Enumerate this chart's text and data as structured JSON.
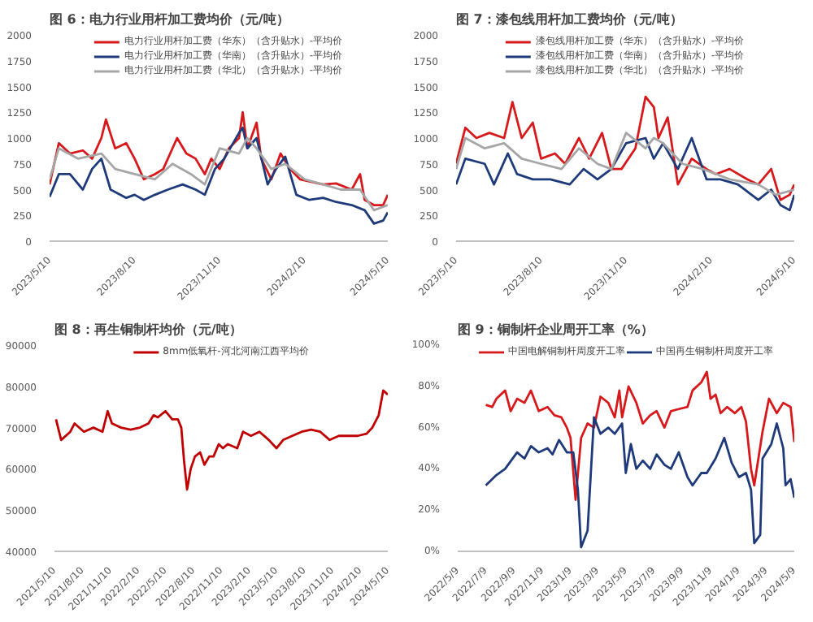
{
  "chart_data": [
    {
      "type": "line",
      "title": "图 6：电力行业用杆加工费均价（元/吨）",
      "legend": "top",
      "xlim": [
        "2023-05-10",
        "2024-05-10"
      ],
      "ylim": [
        0,
        2000
      ],
      "xticks": [
        {
          "value": "2023-05-10",
          "label": "2023/5/10"
        },
        {
          "value": "2023-08-10",
          "label": "2023/8/10"
        },
        {
          "value": "2023-11-10",
          "label": "2023/11/10"
        },
        {
          "value": "2024-02-10",
          "label": "2024/2/10"
        },
        {
          "value": "2024-05-10",
          "label": "2024/5/10"
        }
      ],
      "yticks": [
        0,
        250,
        500,
        750,
        1000,
        1250,
        1500,
        1750,
        2000
      ],
      "series": [
        {
          "name": "电力行业用杆加工费（华东）（含升贴水）-平均价",
          "color": "#d7191c",
          "x": [
            "2023-05-10",
            "2023-05-20",
            "2023-06-01",
            "2023-06-15",
            "2023-06-25",
            "2023-07-05",
            "2023-07-10",
            "2023-07-20",
            "2023-08-01",
            "2023-08-10",
            "2023-08-20",
            "2023-09-01",
            "2023-09-10",
            "2023-09-25",
            "2023-10-05",
            "2023-10-15",
            "2023-10-25",
            "2023-11-01",
            "2023-11-10",
            "2023-11-20",
            "2023-12-01",
            "2023-12-05",
            "2023-12-10",
            "2023-12-20",
            "2023-12-25",
            "2024-01-05",
            "2024-01-15",
            "2024-01-25",
            "2024-02-05",
            "2024-02-15",
            "2024-03-01",
            "2024-03-15",
            "2024-04-01",
            "2024-04-10",
            "2024-04-15",
            "2024-04-25",
            "2024-05-05",
            "2024-05-10"
          ],
          "values": [
            550,
            950,
            850,
            880,
            800,
            1000,
            1180,
            900,
            950,
            800,
            600,
            650,
            700,
            1000,
            850,
            800,
            650,
            800,
            700,
            900,
            1000,
            1250,
            900,
            1150,
            800,
            600,
            850,
            700,
            600,
            580,
            550,
            560,
            500,
            650,
            400,
            350,
            350,
            450
          ]
        },
        {
          "name": "电力行业用杆加工费（华南）（含升贴水）-平均价",
          "color": "#1f3a7a",
          "x": [
            "2023-05-10",
            "2023-05-20",
            "2023-06-01",
            "2023-06-15",
            "2023-06-25",
            "2023-07-05",
            "2023-07-15",
            "2023-08-01",
            "2023-08-10",
            "2023-08-20",
            "2023-09-01",
            "2023-09-15",
            "2023-10-01",
            "2023-10-15",
            "2023-10-25",
            "2023-11-05",
            "2023-11-15",
            "2023-12-01",
            "2023-12-05",
            "2023-12-10",
            "2023-12-20",
            "2024-01-01",
            "2024-01-10",
            "2024-01-20",
            "2024-02-01",
            "2024-02-15",
            "2024-03-01",
            "2024-03-15",
            "2024-04-01",
            "2024-04-15",
            "2024-04-25",
            "2024-05-05",
            "2024-05-10"
          ],
          "values": [
            430,
            650,
            650,
            500,
            700,
            800,
            500,
            420,
            450,
            400,
            450,
            500,
            550,
            500,
            450,
            700,
            800,
            1050,
            1100,
            900,
            1000,
            550,
            700,
            820,
            450,
            400,
            420,
            380,
            350,
            300,
            170,
            200,
            280
          ]
        },
        {
          "name": "电力行业用杆加工费（华北）（含升贴水）-平均价",
          "color": "#a6a6a6",
          "x": [
            "2023-05-10",
            "2023-05-20",
            "2023-06-10",
            "2023-07-05",
            "2023-07-20",
            "2023-08-10",
            "2023-09-01",
            "2023-09-20",
            "2023-10-10",
            "2023-10-25",
            "2023-11-10",
            "2023-12-01",
            "2023-12-10",
            "2023-12-20",
            "2024-01-05",
            "2024-01-20",
            "2024-02-10",
            "2024-03-01",
            "2024-03-20",
            "2024-04-10",
            "2024-04-25",
            "2024-05-10"
          ],
          "values": [
            600,
            900,
            800,
            850,
            700,
            650,
            600,
            750,
            650,
            550,
            900,
            850,
            1000,
            900,
            700,
            750,
            600,
            550,
            500,
            500,
            300,
            350
          ]
        }
      ]
    },
    {
      "type": "line",
      "title": "图 7：漆包线用杆加工费均价（元/吨）",
      "legend": "top",
      "xlim": [
        "2023-05-10",
        "2024-05-10"
      ],
      "ylim": [
        0,
        2000
      ],
      "xticks": [
        {
          "value": "2023-05-10",
          "label": "2023/5/10"
        },
        {
          "value": "2023-08-10",
          "label": "2023/8/10"
        },
        {
          "value": "2023-11-10",
          "label": "2023/11/10"
        },
        {
          "value": "2024-02-10",
          "label": "2024/2/10"
        },
        {
          "value": "2024-05-10",
          "label": "2024/5/10"
        }
      ],
      "yticks": [
        0,
        250,
        500,
        750,
        1000,
        1250,
        1500,
        1750,
        2000
      ],
      "series": [
        {
          "name": "漆包线用杆加工费（华东）（含升贴水）-平均价",
          "color": "#d7191c",
          "x": [
            "2023-05-10",
            "2023-05-20",
            "2023-06-01",
            "2023-06-15",
            "2023-07-01",
            "2023-07-10",
            "2023-07-20",
            "2023-08-01",
            "2023-08-10",
            "2023-08-25",
            "2023-09-05",
            "2023-09-20",
            "2023-10-01",
            "2023-10-15",
            "2023-10-25",
            "2023-11-05",
            "2023-11-20",
            "2023-12-01",
            "2023-12-10",
            "2023-12-15",
            "2023-12-25",
            "2024-01-05",
            "2024-01-20",
            "2024-02-05",
            "2024-02-15",
            "2024-03-01",
            "2024-03-20",
            "2024-04-01",
            "2024-04-15",
            "2024-04-25",
            "2024-05-05",
            "2024-05-10"
          ],
          "values": [
            750,
            1100,
            1000,
            1050,
            1000,
            1350,
            1000,
            1150,
            800,
            850,
            750,
            1000,
            800,
            1050,
            700,
            700,
            900,
            1400,
            1300,
            1000,
            1200,
            550,
            800,
            700,
            650,
            700,
            600,
            550,
            700,
            400,
            450,
            550
          ]
        },
        {
          "name": "漆包线用杆加工费（华南）（含升贴水）-平均价",
          "color": "#1f3a7a",
          "x": [
            "2023-05-10",
            "2023-05-20",
            "2023-06-10",
            "2023-06-20",
            "2023-07-05",
            "2023-07-15",
            "2023-08-01",
            "2023-08-20",
            "2023-09-10",
            "2023-09-25",
            "2023-10-10",
            "2023-10-25",
            "2023-11-10",
            "2023-12-01",
            "2023-12-10",
            "2023-12-20",
            "2024-01-05",
            "2024-01-20",
            "2024-02-05",
            "2024-02-20",
            "2024-03-10",
            "2024-04-01",
            "2024-04-15",
            "2024-04-25",
            "2024-05-05",
            "2024-05-10"
          ],
          "values": [
            550,
            800,
            750,
            550,
            850,
            650,
            600,
            600,
            550,
            700,
            600,
            700,
            950,
            1000,
            800,
            950,
            700,
            1000,
            600,
            600,
            550,
            400,
            500,
            350,
            300,
            450
          ]
        },
        {
          "name": "漆包线用杆加工费（华北）（含升贴水）-平均价",
          "color": "#a6a6a6",
          "x": [
            "2023-05-10",
            "2023-05-20",
            "2023-06-10",
            "2023-07-01",
            "2023-07-20",
            "2023-08-10",
            "2023-09-01",
            "2023-09-20",
            "2023-10-10",
            "2023-10-25",
            "2023-11-10",
            "2023-12-01",
            "2023-12-10",
            "2023-12-20",
            "2024-01-10",
            "2024-02-01",
            "2024-03-01",
            "2024-04-01",
            "2024-04-20",
            "2024-05-10"
          ],
          "values": [
            700,
            1000,
            900,
            950,
            800,
            750,
            700,
            900,
            750,
            700,
            1050,
            900,
            1000,
            950,
            750,
            700,
            600,
            550,
            450,
            500
          ]
        }
      ]
    },
    {
      "type": "line",
      "title": "图 8：再生铜制杆均价（元/吨）",
      "legend": "top",
      "xlim": [
        "2021-05-10",
        "2024-05-10"
      ],
      "ylim": [
        40000,
        90000
      ],
      "xticks": [
        {
          "value": "2021-05-10",
          "label": "2021/5/10"
        },
        {
          "value": "2021-08-10",
          "label": "2021/8/10"
        },
        {
          "value": "2021-11-10",
          "label": "2021/11/10"
        },
        {
          "value": "2022-02-10",
          "label": "2022/2/10"
        },
        {
          "value": "2022-05-10",
          "label": "2022/5/10"
        },
        {
          "value": "2022-08-10",
          "label": "2022/8/10"
        },
        {
          "value": "2022-11-10",
          "label": "2022/11/10"
        },
        {
          "value": "2023-02-10",
          "label": "2023/2/10"
        },
        {
          "value": "2023-05-10",
          "label": "2023/5/10"
        },
        {
          "value": "2023-08-10",
          "label": "2023/8/10"
        },
        {
          "value": "2023-11-10",
          "label": "2023/11/10"
        },
        {
          "value": "2024-02-10",
          "label": "2024/2/10"
        },
        {
          "value": "2024-05-10",
          "label": "2024/5/10"
        }
      ],
      "yticks": [
        40000,
        50000,
        60000,
        70000,
        80000,
        90000
      ],
      "series": [
        {
          "name": "8mm低氧杆-河北河南江西平均价",
          "color": "#c00000",
          "x": [
            "2021-05-15",
            "2021-06-01",
            "2021-07-01",
            "2021-07-15",
            "2021-08-15",
            "2021-09-15",
            "2021-10-15",
            "2021-11-01",
            "2021-11-15",
            "2021-12-15",
            "2022-01-15",
            "2022-02-15",
            "2022-03-15",
            "2022-04-01",
            "2022-04-15",
            "2022-05-10",
            "2022-06-01",
            "2022-06-20",
            "2022-07-01",
            "2022-07-10",
            "2022-07-20",
            "2022-08-01",
            "2022-08-15",
            "2022-09-01",
            "2022-09-15",
            "2022-10-01",
            "2022-10-15",
            "2022-11-01",
            "2022-11-15",
            "2022-12-01",
            "2023-01-01",
            "2023-01-20",
            "2023-02-15",
            "2023-03-15",
            "2023-04-15",
            "2023-05-10",
            "2023-06-01",
            "2023-07-01",
            "2023-08-01",
            "2023-09-01",
            "2023-10-01",
            "2023-11-01",
            "2023-12-01",
            "2024-01-01",
            "2024-02-01",
            "2024-03-01",
            "2024-03-20",
            "2024-04-10",
            "2024-04-25",
            "2024-05-10"
          ],
          "values": [
            72000,
            67000,
            69000,
            71000,
            69000,
            70000,
            69000,
            74000,
            71000,
            70000,
            69500,
            70000,
            71000,
            73000,
            72500,
            74000,
            72000,
            72000,
            70000,
            62000,
            55000,
            60000,
            63000,
            64000,
            61000,
            63000,
            63000,
            66000,
            65000,
            66000,
            65000,
            69000,
            68000,
            69000,
            67000,
            65000,
            67000,
            68000,
            69000,
            69500,
            69000,
            67000,
            68000,
            68000,
            68000,
            68500,
            70000,
            73000,
            79000,
            78000
          ]
        }
      ]
    },
    {
      "type": "line",
      "title": "图 9：铜制杆企业周开工率（%）",
      "legend": "top",
      "xlim": [
        "2022-05-09",
        "2024-05-09"
      ],
      "ylim": [
        0,
        100
      ],
      "xticks": [
        {
          "value": "2022-05-09",
          "label": "2022/5/9"
        },
        {
          "value": "2022-07-09",
          "label": "2022/7/9"
        },
        {
          "value": "2022-09-09",
          "label": "2022/9/9"
        },
        {
          "value": "2022-11-09",
          "label": "2022/11/9"
        },
        {
          "value": "2023-01-09",
          "label": "2023/1/9"
        },
        {
          "value": "2023-03-09",
          "label": "2023/3/9"
        },
        {
          "value": "2023-05-09",
          "label": "2023/5/9"
        },
        {
          "value": "2023-07-09",
          "label": "2023/7/9"
        },
        {
          "value": "2023-09-09",
          "label": "2023/9/9"
        },
        {
          "value": "2023-11-09",
          "label": "2023/11/9"
        },
        {
          "value": "2024-01-09",
          "label": "2024/1/9"
        },
        {
          "value": "2024-03-09",
          "label": "2024/3/9"
        },
        {
          "value": "2024-05-09",
          "label": "2024/5/9"
        }
      ],
      "yticks": [
        {
          "value": 0,
          "label": "0%"
        },
        {
          "value": 20,
          "label": "20%"
        },
        {
          "value": 40,
          "label": "40%"
        },
        {
          "value": 60,
          "label": "60%"
        },
        {
          "value": 80,
          "label": "80%"
        },
        {
          "value": 100,
          "label": "100%"
        }
      ],
      "series": [
        {
          "name": "中国电解铜制杆周度开工率",
          "color": "#d7191c",
          "x": [
            "2022-07-09",
            "2022-07-23",
            "2022-08-01",
            "2022-08-20",
            "2022-09-01",
            "2022-09-15",
            "2022-10-01",
            "2022-10-15",
            "2022-11-01",
            "2022-11-20",
            "2022-12-05",
            "2022-12-20",
            "2023-01-01",
            "2023-01-09",
            "2023-01-20",
            "2023-02-01",
            "2023-02-15",
            "2023-03-01",
            "2023-03-15",
            "2023-04-01",
            "2023-04-15",
            "2023-04-25",
            "2023-05-01",
            "2023-05-15",
            "2023-06-01",
            "2023-06-15",
            "2023-07-01",
            "2023-07-15",
            "2023-08-01",
            "2023-08-15",
            "2023-09-01",
            "2023-09-20",
            "2023-10-01",
            "2023-10-20",
            "2023-11-01",
            "2023-11-09",
            "2023-11-20",
            "2023-12-01",
            "2023-12-15",
            "2024-01-01",
            "2024-01-15",
            "2024-01-25",
            "2024-02-05",
            "2024-02-12",
            "2024-03-01",
            "2024-03-15",
            "2024-04-01",
            "2024-04-15",
            "2024-05-01",
            "2024-05-09"
          ],
          "values": [
            71,
            70,
            74,
            78,
            68,
            74,
            72,
            78,
            68,
            70,
            66,
            65,
            60,
            55,
            25,
            55,
            62,
            60,
            75,
            72,
            65,
            78,
            65,
            80,
            72,
            62,
            66,
            68,
            60,
            68,
            69,
            70,
            78,
            82,
            87,
            74,
            76,
            67,
            70,
            67,
            70,
            63,
            40,
            32,
            58,
            74,
            67,
            72,
            70,
            53
          ]
        },
        {
          "name": "中国再生铜制杆周度开工率",
          "color": "#1f3a7a",
          "x": [
            "2022-07-09",
            "2022-08-01",
            "2022-08-20",
            "2022-09-15",
            "2022-10-01",
            "2022-10-15",
            "2022-11-01",
            "2022-11-20",
            "2022-12-01",
            "2022-12-15",
            "2023-01-01",
            "2023-01-15",
            "2023-01-25",
            "2023-02-01",
            "2023-02-15",
            "2023-03-01",
            "2023-03-15",
            "2023-04-01",
            "2023-04-15",
            "2023-05-01",
            "2023-05-09",
            "2023-05-20",
            "2023-06-01",
            "2023-06-15",
            "2023-07-01",
            "2023-07-15",
            "2023-08-01",
            "2023-08-15",
            "2023-09-01",
            "2023-09-20",
            "2023-10-01",
            "2023-10-20",
            "2023-11-01",
            "2023-11-20",
            "2023-12-09",
            "2023-12-25",
            "2024-01-10",
            "2024-01-25",
            "2024-02-05",
            "2024-02-12",
            "2024-02-25",
            "2024-03-01",
            "2024-03-20",
            "2024-04-01",
            "2024-04-15",
            "2024-04-20",
            "2024-05-01",
            "2024-05-09"
          ],
          "values": [
            32,
            37,
            40,
            48,
            45,
            51,
            48,
            50,
            47,
            54,
            48,
            48,
            30,
            2,
            10,
            65,
            57,
            60,
            57,
            62,
            38,
            52,
            40,
            44,
            40,
            47,
            42,
            40,
            48,
            36,
            32,
            38,
            38,
            45,
            55,
            43,
            36,
            38,
            30,
            4,
            8,
            45,
            52,
            62,
            50,
            32,
            35,
            26
          ]
        }
      ]
    }
  ]
}
